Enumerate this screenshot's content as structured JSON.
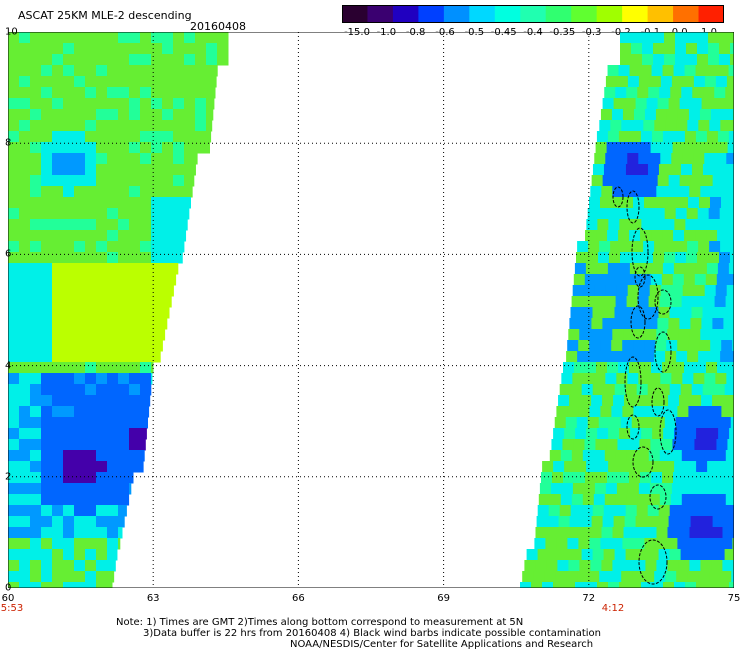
{
  "header": {
    "title": "ASCAT 25KM MLE-2 descending",
    "date": "20160408"
  },
  "colorbar": {
    "colors": [
      "#2a0030",
      "#3a0070",
      "#2000c0",
      "#0040ff",
      "#0090ff",
      "#00d8ff",
      "#00ffe0",
      "#20ffb0",
      "#30ff70",
      "#60ff30",
      "#a0ff00",
      "#ffff00",
      "#ffc000",
      "#ff7000",
      "#ff2000"
    ],
    "labels": [
      "-15.0",
      "-1.0",
      "-0.8",
      "-0.6",
      "-0.5",
      "-0.45",
      "-0.4",
      "-0.35",
      "-0.3",
      "-0.2",
      "-0.1",
      "0.0",
      "1.0"
    ]
  },
  "map": {
    "x_ticks": [
      "60",
      "63",
      "66",
      "69",
      "72",
      "75"
    ],
    "y_ticks": [
      "0",
      "2",
      "4",
      "6",
      "8",
      "10"
    ],
    "x_range": [
      60,
      75
    ],
    "y_range": [
      0,
      10
    ],
    "times": [
      {
        "label": "5:53",
        "x": 60
      },
      {
        "label": "4:12",
        "x": 72.5
      }
    ]
  },
  "footer": {
    "line1": "Note: 1) Times are GMT 2)Times along bottom correspond to measurement at 5N",
    "line2": "3)Data buffer is 22 hrs from 20160408 4) Black wind barbs indicate possible contamination",
    "line3": "NOAA/NESDIS/Center for Satellite Applications and Research"
  }
}
